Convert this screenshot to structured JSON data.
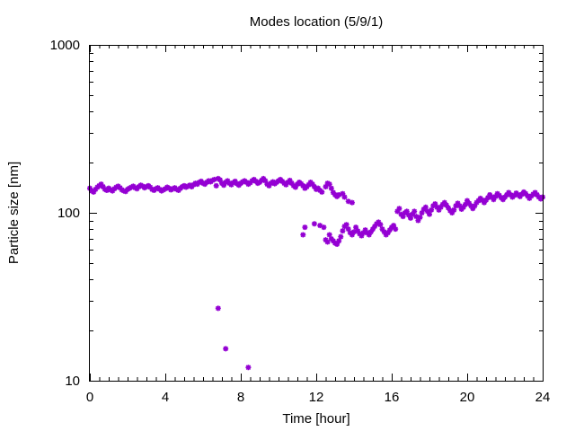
{
  "chart_data": {
    "type": "scatter",
    "title": "Modes location (5/9/1)",
    "xlabel": "Time [hour]",
    "ylabel": "Particle size [nm]",
    "xlim": [
      0,
      24
    ],
    "ylim": [
      10,
      1000
    ],
    "yscale": "log",
    "grid": false,
    "legend": "none",
    "x_ticks": [
      0,
      4,
      8,
      12,
      16,
      20,
      24
    ],
    "x_tick_labels": [
      "0",
      "4",
      "8",
      "12",
      "16",
      "20",
      "24"
    ],
    "y_ticks": [
      10,
      100,
      1000
    ],
    "y_tick_labels": [
      "10",
      "100",
      "1000"
    ],
    "marker_color": "#9400d3",
    "series": [
      {
        "points": [
          [
            0.0,
            140
          ],
          [
            0.1,
            135
          ],
          [
            0.2,
            133
          ],
          [
            0.3,
            138
          ],
          [
            0.4,
            142
          ],
          [
            0.5,
            145
          ],
          [
            0.6,
            148
          ],
          [
            0.7,
            143
          ],
          [
            0.8,
            138
          ],
          [
            0.9,
            136
          ],
          [
            1.0,
            140
          ],
          [
            1.1,
            137
          ],
          [
            1.2,
            135
          ],
          [
            1.3,
            139
          ],
          [
            1.4,
            142
          ],
          [
            1.5,
            144
          ],
          [
            1.6,
            141
          ],
          [
            1.7,
            137
          ],
          [
            1.8,
            135
          ],
          [
            1.9,
            134
          ],
          [
            2.0,
            138
          ],
          [
            2.1,
            140
          ],
          [
            2.2,
            142
          ],
          [
            2.3,
            144
          ],
          [
            2.4,
            141
          ],
          [
            2.5,
            139
          ],
          [
            2.6,
            143
          ],
          [
            2.7,
            146
          ],
          [
            2.8,
            144
          ],
          [
            2.9,
            141
          ],
          [
            3.0,
            143
          ],
          [
            3.1,
            145
          ],
          [
            3.2,
            142
          ],
          [
            3.3,
            138
          ],
          [
            3.4,
            136
          ],
          [
            3.5,
            139
          ],
          [
            3.6,
            141
          ],
          [
            3.7,
            138
          ],
          [
            3.8,
            135
          ],
          [
            3.9,
            137
          ],
          [
            4.0,
            139
          ],
          [
            4.1,
            142
          ],
          [
            4.2,
            140
          ],
          [
            4.3,
            137
          ],
          [
            4.4,
            139
          ],
          [
            4.5,
            141
          ],
          [
            4.6,
            138
          ],
          [
            4.7,
            136
          ],
          [
            4.8,
            140
          ],
          [
            4.9,
            143
          ],
          [
            5.0,
            145
          ],
          [
            5.1,
            142
          ],
          [
            5.2,
            144
          ],
          [
            5.3,
            146
          ],
          [
            5.4,
            143
          ],
          [
            5.5,
            147
          ],
          [
            5.6,
            150
          ],
          [
            5.7,
            148
          ],
          [
            5.8,
            152
          ],
          [
            5.9,
            154
          ],
          [
            6.0,
            150
          ],
          [
            6.1,
            148
          ],
          [
            6.2,
            152
          ],
          [
            6.3,
            155
          ],
          [
            6.4,
            153
          ],
          [
            6.5,
            156
          ],
          [
            6.6,
            158
          ],
          [
            6.7,
            145
          ],
          [
            6.8,
            160
          ],
          [
            6.9,
            157
          ],
          [
            7.0,
            150
          ],
          [
            7.1,
            146
          ],
          [
            7.2,
            152
          ],
          [
            7.3,
            155
          ],
          [
            7.4,
            150
          ],
          [
            7.5,
            147
          ],
          [
            7.6,
            151
          ],
          [
            7.7,
            154
          ],
          [
            7.8,
            149
          ],
          [
            7.9,
            146
          ],
          [
            8.0,
            150
          ],
          [
            8.1,
            153
          ],
          [
            8.2,
            155
          ],
          [
            8.3,
            152
          ],
          [
            8.4,
            148
          ],
          [
            8.5,
            151
          ],
          [
            8.6,
            155
          ],
          [
            8.7,
            158
          ],
          [
            8.8,
            154
          ],
          [
            8.9,
            150
          ],
          [
            9.0,
            152
          ],
          [
            9.1,
            156
          ],
          [
            9.2,
            160
          ],
          [
            9.3,
            155
          ],
          [
            9.4,
            148
          ],
          [
            9.5,
            145
          ],
          [
            9.6,
            150
          ],
          [
            9.7,
            153
          ],
          [
            9.8,
            149
          ],
          [
            9.9,
            152
          ],
          [
            10.0,
            155
          ],
          [
            10.1,
            158
          ],
          [
            10.2,
            154
          ],
          [
            10.3,
            150
          ],
          [
            10.4,
            147
          ],
          [
            10.5,
            152
          ],
          [
            10.6,
            156
          ],
          [
            10.7,
            150
          ],
          [
            10.8,
            145
          ],
          [
            10.9,
            142
          ],
          [
            11.0,
            148
          ],
          [
            11.1,
            152
          ],
          [
            11.2,
            149
          ],
          [
            11.3,
            145
          ],
          [
            11.4,
            140
          ],
          [
            11.5,
            143
          ],
          [
            11.6,
            147
          ],
          [
            11.7,
            152
          ],
          [
            11.8,
            148
          ],
          [
            11.9,
            143
          ],
          [
            12.0,
            138
          ],
          [
            12.1,
            140
          ],
          [
            12.2,
            136
          ],
          [
            12.3,
            133
          ],
          [
            12.5,
            143
          ],
          [
            12.6,
            150
          ],
          [
            12.7,
            148
          ],
          [
            12.8,
            140
          ],
          [
            12.9,
            132
          ],
          [
            13.0,
            128
          ],
          [
            13.1,
            125
          ],
          [
            13.2,
            128
          ],
          [
            13.4,
            130
          ],
          [
            13.5,
            124
          ],
          [
            13.7,
            117
          ],
          [
            13.9,
            115
          ],
          [
            11.3,
            74
          ],
          [
            11.4,
            82
          ],
          [
            11.9,
            86
          ],
          [
            12.2,
            84
          ],
          [
            12.4,
            82
          ],
          [
            12.5,
            69
          ],
          [
            12.6,
            67
          ],
          [
            12.7,
            74
          ],
          [
            12.8,
            70
          ],
          [
            12.9,
            68
          ],
          [
            13.0,
            66
          ],
          [
            13.1,
            65
          ],
          [
            13.2,
            68
          ],
          [
            13.3,
            72
          ],
          [
            13.4,
            78
          ],
          [
            13.5,
            83
          ],
          [
            13.6,
            85
          ],
          [
            13.7,
            80
          ],
          [
            13.8,
            76
          ],
          [
            13.9,
            74
          ],
          [
            14.0,
            77
          ],
          [
            14.1,
            82
          ],
          [
            14.2,
            78
          ],
          [
            14.3,
            75
          ],
          [
            14.4,
            73
          ],
          [
            14.5,
            76
          ],
          [
            14.6,
            79
          ],
          [
            14.7,
            76
          ],
          [
            14.8,
            74
          ],
          [
            14.9,
            77
          ],
          [
            15.0,
            80
          ],
          [
            15.1,
            83
          ],
          [
            15.2,
            86
          ],
          [
            15.3,
            88
          ],
          [
            15.4,
            85
          ],
          [
            15.5,
            80
          ],
          [
            15.6,
            77
          ],
          [
            15.7,
            74
          ],
          [
            15.8,
            76
          ],
          [
            15.9,
            79
          ],
          [
            16.0,
            82
          ],
          [
            16.1,
            84
          ],
          [
            16.2,
            80
          ],
          [
            16.3,
            102
          ],
          [
            16.4,
            106
          ],
          [
            16.5,
            98
          ],
          [
            16.6,
            95
          ],
          [
            16.7,
            100
          ],
          [
            16.8,
            102
          ],
          [
            16.9,
            97
          ],
          [
            17.0,
            93
          ],
          [
            17.1,
            98
          ],
          [
            17.2,
            102
          ],
          [
            17.3,
            95
          ],
          [
            17.4,
            90
          ],
          [
            17.5,
            94
          ],
          [
            17.6,
            100
          ],
          [
            17.7,
            105
          ],
          [
            17.8,
            108
          ],
          [
            17.9,
            102
          ],
          [
            18.0,
            98
          ],
          [
            18.1,
            104
          ],
          [
            18.2,
            110
          ],
          [
            18.3,
            113
          ],
          [
            18.4,
            108
          ],
          [
            18.5,
            104
          ],
          [
            18.6,
            108
          ],
          [
            18.7,
            112
          ],
          [
            18.8,
            115
          ],
          [
            18.9,
            111
          ],
          [
            19.0,
            107
          ],
          [
            19.1,
            103
          ],
          [
            19.2,
            100
          ],
          [
            19.3,
            104
          ],
          [
            19.4,
            110
          ],
          [
            19.5,
            114
          ],
          [
            19.6,
            110
          ],
          [
            19.7,
            105
          ],
          [
            19.8,
            108
          ],
          [
            19.9,
            112
          ],
          [
            20.0,
            118
          ],
          [
            20.1,
            114
          ],
          [
            20.2,
            110
          ],
          [
            20.3,
            106
          ],
          [
            20.4,
            110
          ],
          [
            20.5,
            115
          ],
          [
            20.6,
            118
          ],
          [
            20.7,
            122
          ],
          [
            20.8,
            119
          ],
          [
            20.9,
            115
          ],
          [
            21.0,
            119
          ],
          [
            21.1,
            123
          ],
          [
            21.2,
            128
          ],
          [
            21.3,
            124
          ],
          [
            21.4,
            120
          ],
          [
            21.5,
            125
          ],
          [
            21.6,
            130
          ],
          [
            21.7,
            127
          ],
          [
            21.8,
            123
          ],
          [
            21.9,
            120
          ],
          [
            22.0,
            124
          ],
          [
            22.1,
            128
          ],
          [
            22.2,
            132
          ],
          [
            22.3,
            128
          ],
          [
            22.4,
            124
          ],
          [
            22.5,
            127
          ],
          [
            22.6,
            131
          ],
          [
            22.7,
            128
          ],
          [
            22.8,
            125
          ],
          [
            22.9,
            129
          ],
          [
            23.0,
            133
          ],
          [
            23.1,
            130
          ],
          [
            23.2,
            126
          ],
          [
            23.3,
            122
          ],
          [
            23.4,
            126
          ],
          [
            23.5,
            129
          ],
          [
            23.6,
            132
          ],
          [
            23.7,
            128
          ],
          [
            23.8,
            124
          ],
          [
            23.9,
            121
          ],
          [
            24.0,
            124
          ],
          [
            6.8,
            27
          ],
          [
            7.2,
            15.5
          ],
          [
            8.4,
            12
          ]
        ]
      }
    ]
  }
}
